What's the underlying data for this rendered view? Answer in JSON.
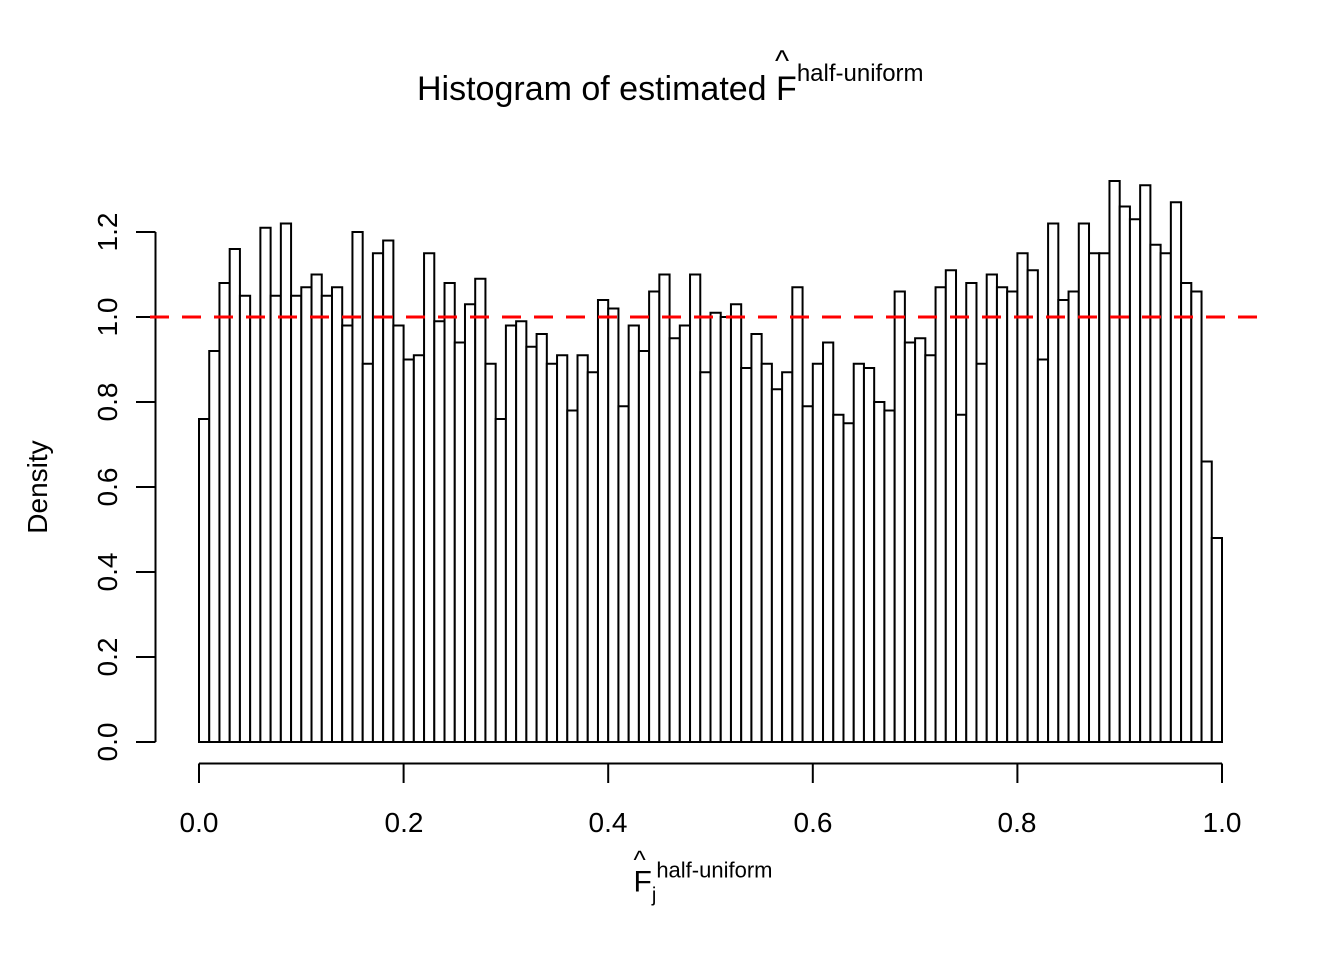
{
  "title": {
    "prefix": "Histogram of estimated ",
    "symbol": "F",
    "hat": "^",
    "superscript": "half-uniform"
  },
  "y_axis": {
    "label": "Density",
    "ticks": [
      "0.0",
      "0.2",
      "0.4",
      "0.6",
      "0.8",
      "1.0",
      "1.2"
    ]
  },
  "x_axis": {
    "ticks": [
      "0.0",
      "0.2",
      "0.4",
      "0.6",
      "0.8",
      "1.0"
    ],
    "label": {
      "symbol": "F",
      "hat": "^",
      "subscript": "j",
      "superscript": "half-uniform"
    }
  },
  "reference_line": {
    "value": 1.0,
    "color": "#ff0000",
    "style": "dashed"
  },
  "colors": {
    "bar_fill": "#ffffff",
    "bar_stroke": "#000000",
    "axis": "#000000"
  },
  "chart_data": {
    "type": "bar",
    "title": "Histogram of estimated F^half-uniform (hat over F)",
    "xlabel": "F_j^half-uniform (hat over F)",
    "ylabel": "Density",
    "xlim": [
      0,
      1
    ],
    "ylim": [
      0,
      1.2
    ],
    "grid": false,
    "bin_start": 0,
    "bin_width": 0.01,
    "reference_line_y": 1.0,
    "values": [
      0.76,
      0.92,
      1.08,
      1.16,
      1.05,
      1.0,
      1.21,
      1.05,
      1.22,
      1.05,
      1.07,
      1.1,
      1.05,
      1.07,
      0.98,
      1.2,
      0.89,
      1.15,
      1.18,
      0.98,
      0.9,
      0.91,
      1.15,
      0.99,
      1.08,
      0.94,
      1.03,
      1.09,
      0.89,
      0.76,
      0.98,
      0.99,
      0.93,
      0.96,
      0.89,
      0.91,
      0.78,
      0.91,
      0.87,
      1.04,
      1.02,
      0.79,
      0.98,
      0.92,
      1.06,
      1.1,
      0.95,
      0.98,
      1.1,
      0.87,
      1.01,
      1.0,
      1.03,
      0.88,
      0.96,
      0.89,
      0.83,
      0.87,
      1.07,
      0.79,
      0.89,
      0.94,
      0.77,
      0.75,
      0.89,
      0.88,
      0.8,
      0.78,
      1.06,
      0.94,
      0.95,
      0.91,
      1.07,
      1.11,
      0.77,
      1.08,
      0.89,
      1.1,
      1.07,
      1.06,
      1.15,
      1.11,
      0.9,
      1.22,
      1.04,
      1.06,
      1.22,
      1.15,
      1.15,
      1.32,
      1.26,
      1.23,
      1.31,
      1.17,
      1.15,
      1.27,
      1.08,
      1.06,
      0.66,
      0.48
    ]
  }
}
